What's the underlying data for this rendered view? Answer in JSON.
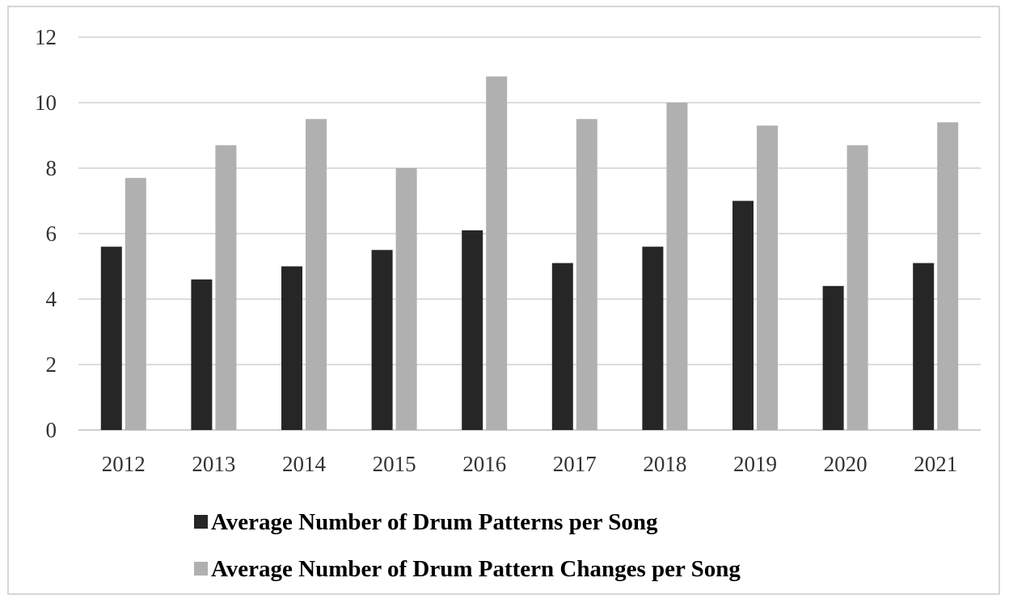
{
  "chart_data": {
    "type": "bar",
    "title": "",
    "xlabel": "",
    "ylabel": "",
    "ylim": [
      0,
      12
    ],
    "yticks": [
      0,
      2,
      4,
      6,
      8,
      10,
      12
    ],
    "grid": "horizontal",
    "legend_position": "bottom",
    "categories": [
      "2012",
      "2013",
      "2014",
      "2015",
      "2016",
      "2017",
      "2018",
      "2019",
      "2020",
      "2021"
    ],
    "series": [
      {
        "name": "Average Number of Drum Patterns per Song",
        "color": "#262626",
        "values": [
          5.6,
          4.6,
          5.0,
          5.5,
          6.1,
          5.1,
          5.6,
          7.0,
          4.4,
          5.1
        ]
      },
      {
        "name": "Average Number of Drum Pattern Changes per Song",
        "color": "#b0b0b0",
        "values": [
          7.7,
          8.7,
          9.5,
          8.0,
          10.8,
          9.5,
          10.0,
          9.3,
          8.7,
          9.4
        ]
      }
    ]
  }
}
